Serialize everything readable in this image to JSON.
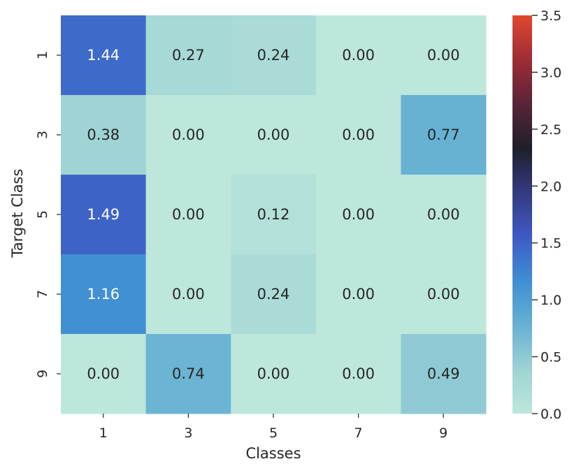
{
  "chart_data": {
    "type": "heatmap",
    "title": "",
    "xlabel": "Classes",
    "ylabel": "Target Class",
    "x_categories": [
      "1",
      "3",
      "5",
      "7",
      "9"
    ],
    "y_categories": [
      "1",
      "3",
      "5",
      "7",
      "9"
    ],
    "values": [
      [
        1.44,
        0.27,
        0.24,
        0.0,
        0.0
      ],
      [
        0.38,
        0.0,
        0.0,
        0.0,
        0.77
      ],
      [
        1.49,
        0.0,
        0.12,
        0.0,
        0.0
      ],
      [
        1.16,
        0.0,
        0.24,
        0.0,
        0.0
      ],
      [
        0.0,
        0.74,
        0.0,
        0.0,
        0.49
      ]
    ],
    "cell_labels": [
      [
        "1.44",
        "0.27",
        "0.24",
        "0.00",
        "0.00"
      ],
      [
        "0.38",
        "0.00",
        "0.00",
        "0.00",
        "0.77"
      ],
      [
        "1.49",
        "0.00",
        "0.12",
        "0.00",
        "0.00"
      ],
      [
        "1.16",
        "0.00",
        "0.24",
        "0.00",
        "0.00"
      ],
      [
        "0.00",
        "0.74",
        "0.00",
        "0.00",
        "0.49"
      ]
    ],
    "colorbar": {
      "range": [
        0.0,
        3.5
      ],
      "ticks": [
        "0.0",
        "0.5",
        "1.0",
        "1.5",
        "2.0",
        "2.5",
        "3.0",
        "3.5"
      ],
      "colormap": "icefire",
      "colormap_stops": [
        "#bde7db",
        "#9ed3d4",
        "#66b1d3",
        "#3f8fd3",
        "#3e5ac5",
        "#343b7f",
        "#1f1f2b",
        "#592439",
        "#9e2c35",
        "#e0482e"
      ]
    },
    "grid": false,
    "legend": "colorbar-right"
  }
}
